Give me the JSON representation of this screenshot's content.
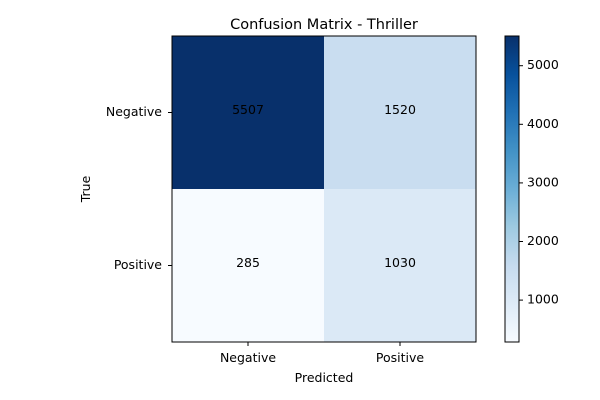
{
  "chart_data": {
    "type": "heatmap",
    "title": "Confusion Matrix - Thriller",
    "xlabel": "Predicted",
    "ylabel": "True",
    "x_categories": [
      "Negative",
      "Positive"
    ],
    "y_categories": [
      "Negative",
      "Positive"
    ],
    "values": [
      [
        5507,
        1520
      ],
      [
        285,
        1030
      ]
    ],
    "colormap": "Blues",
    "color_range": [
      285,
      5507
    ],
    "colorbar_ticks": [
      1000,
      2000,
      3000,
      4000,
      5000
    ],
    "colorbar_tick_labels": [
      "1000",
      "2000",
      "3000",
      "4000",
      "5000"
    ],
    "cell_labels": [
      [
        "5507",
        "1520"
      ],
      [
        "285",
        "1030"
      ]
    ]
  }
}
